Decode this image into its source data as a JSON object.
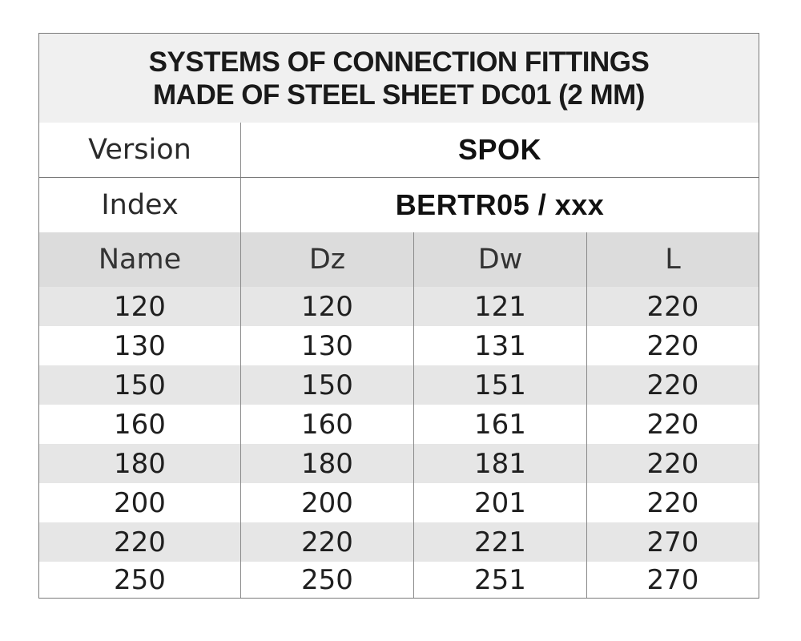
{
  "title": {
    "line1": "SYSTEMS OF CONNECTION FITTINGS",
    "line2": "MADE OF STEEL SHEET DC01 (2 MM)"
  },
  "version": {
    "label": "Version",
    "value": "SPOK"
  },
  "index": {
    "label": "Index",
    "value": "BERTR05 / xxx"
  },
  "columns": [
    "Name",
    "Dz",
    "Dw",
    "L"
  ],
  "rows": [
    [
      "120",
      "120",
      "121",
      "220"
    ],
    [
      "130",
      "130",
      "131",
      "220"
    ],
    [
      "150",
      "150",
      "151",
      "220"
    ],
    [
      "160",
      "160",
      "161",
      "220"
    ],
    [
      "180",
      "180",
      "181",
      "220"
    ],
    [
      "200",
      "200",
      "201",
      "220"
    ],
    [
      "220",
      "220",
      "221",
      "270"
    ],
    [
      "250",
      "250",
      "251",
      "270"
    ]
  ]
}
